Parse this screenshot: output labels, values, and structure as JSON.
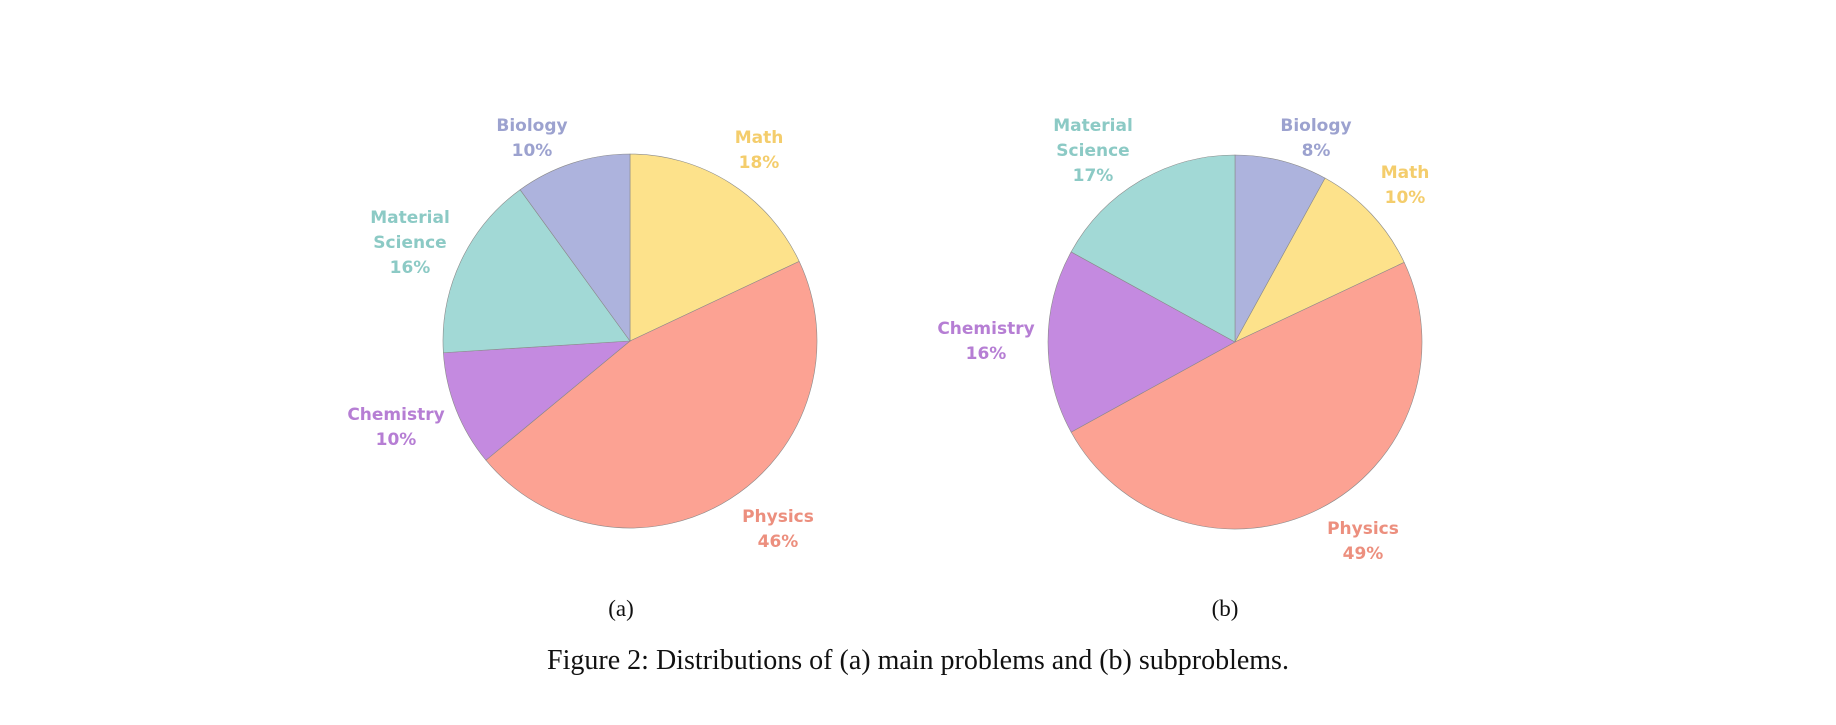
{
  "caption": "Figure 2: Distributions of (a) main problems and (b) subproblems.",
  "colors": {
    "Math": {
      "fill": "#FDE28B",
      "text": "#F4CD6C"
    },
    "Physics": {
      "fill": "#FCA293",
      "text": "#EC8F7E"
    },
    "Chemistry": {
      "fill": "#C48AE0",
      "text": "#B67ED4"
    },
    "Material Science": {
      "fill": "#A2D9D6",
      "text": "#8CCAC5"
    },
    "Biology": {
      "fill": "#ADB3DD",
      "text": "#9CA2CF"
    }
  },
  "chart_data": [
    {
      "type": "pie",
      "sublabel": "(a)",
      "start": "12 o'clock, clockwise",
      "slices": [
        {
          "label": "Math",
          "value": 18,
          "text": "18%"
        },
        {
          "label": "Physics",
          "value": 46,
          "text": "46%"
        },
        {
          "label": "Chemistry",
          "value": 10,
          "text": "10%"
        },
        {
          "label": "Material Science",
          "value": 16,
          "text": "16%"
        },
        {
          "label": "Biology",
          "value": 10,
          "text": "10%"
        }
      ]
    },
    {
      "type": "pie",
      "sublabel": "(b)",
      "start": "12 o'clock, clockwise",
      "slices": [
        {
          "label": "Biology",
          "value": 8,
          "text": "8%"
        },
        {
          "label": "Math",
          "value": 10,
          "text": "10%"
        },
        {
          "label": "Physics",
          "value": 49,
          "text": "49%"
        },
        {
          "label": "Chemistry",
          "value": 16,
          "text": "16%"
        },
        {
          "label": "Material Science",
          "value": 17,
          "text": "17%"
        }
      ]
    }
  ]
}
